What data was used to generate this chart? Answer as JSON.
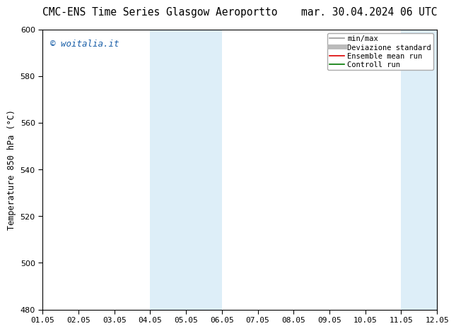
{
  "title_left": "CMC-ENS Time Series Glasgow Aeroportto",
  "title_right": "mar. 30.04.2024 06 UTC",
  "ylabel": "Temperature 850 hPa (°C)",
  "watermark": "© woitalia.it",
  "watermark_color": "#1a5fa8",
  "ylim": [
    480,
    600
  ],
  "yticks": [
    480,
    500,
    520,
    540,
    560,
    580,
    600
  ],
  "xtick_labels": [
    "01.05",
    "02.05",
    "03.05",
    "04.05",
    "05.05",
    "06.05",
    "07.05",
    "08.05",
    "09.05",
    "10.05",
    "11.05",
    "12.05"
  ],
  "n_xticks": 12,
  "shaded_regions": [
    {
      "xstart": 3,
      "xend": 5,
      "color": "#ddeef8"
    },
    {
      "xstart": 10,
      "xend": 12,
      "color": "#ddeef8"
    }
  ],
  "legend_entries": [
    {
      "label": "min/max",
      "color": "#999999",
      "lw": 1.2
    },
    {
      "label": "Deviazione standard",
      "color": "#bbbbbb",
      "lw": 5
    },
    {
      "label": "Ensemble mean run",
      "color": "#dd0000",
      "lw": 1.2
    },
    {
      "label": "Controll run",
      "color": "#007700",
      "lw": 1.2
    }
  ],
  "background_color": "#ffffff",
  "plot_bg_color": "#ffffff",
  "border_color": "#000000",
  "title_fontsize": 10.5,
  "tick_fontsize": 8,
  "ylabel_fontsize": 8.5,
  "legend_fontsize": 7.5,
  "watermark_fontsize": 9
}
